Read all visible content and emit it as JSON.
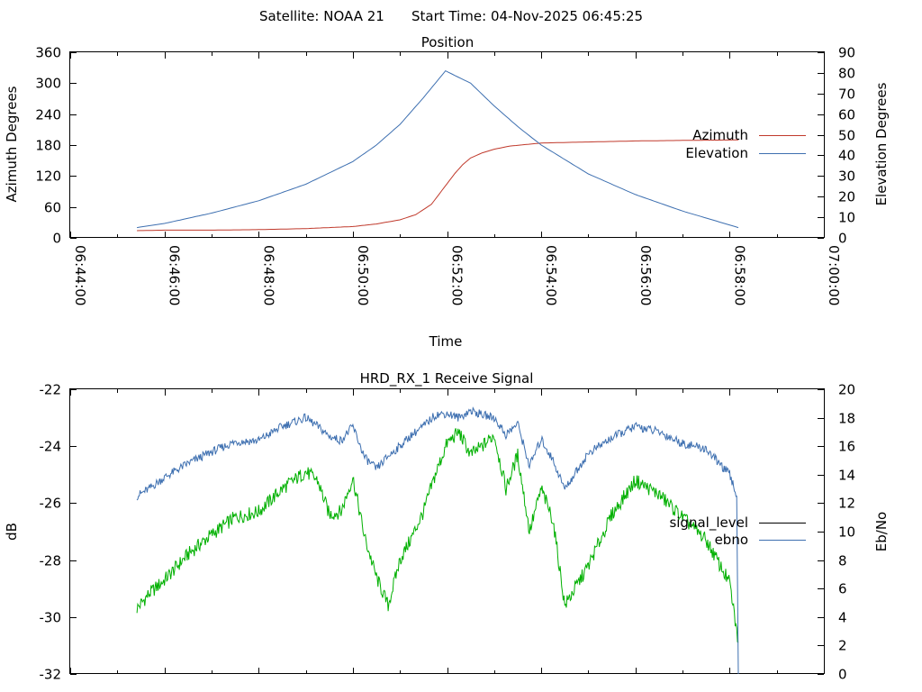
{
  "header": {
    "satellite": "Satellite: NOAA 21",
    "start_time": "Start Time: 04-Nov-2025 06:45:25"
  },
  "chart_data": [
    {
      "type": "line",
      "title": "Position",
      "xlabel": "Time",
      "ylabel": "Azimuth Degrees",
      "y2label": "Elevation Degrees",
      "xlim": [
        "06:44:00",
        "07:00:00"
      ],
      "ylim": [
        0,
        360
      ],
      "y2lim": [
        0,
        90
      ],
      "x_ticks": [
        "06:44:00",
        "06:46:00",
        "06:48:00",
        "06:50:00",
        "06:52:00",
        "06:54:00",
        "06:56:00",
        "06:58:00",
        "07:00:00"
      ],
      "y_ticks": [
        "0",
        "60",
        "120",
        "180",
        "240",
        "300",
        "360"
      ],
      "y2_ticks": [
        "0",
        "10",
        "20",
        "30",
        "40",
        "50",
        "60",
        "70",
        "80",
        "90"
      ],
      "legend_position": "right",
      "grid": false,
      "series": [
        {
          "name": "Azimuth",
          "axis": "y",
          "color": "#c0392b",
          "x": [
            "06:45:25",
            "06:46:00",
            "06:47:00",
            "06:48:00",
            "06:49:00",
            "06:49:30",
            "06:50:00",
            "06:50:30",
            "06:51:00",
            "06:51:20",
            "06:51:40",
            "06:51:50",
            "06:52:00",
            "06:52:10",
            "06:52:20",
            "06:52:30",
            "06:52:45",
            "06:53:00",
            "06:53:20",
            "06:53:40",
            "06:54:00",
            "06:55:00",
            "06:56:00",
            "06:57:00",
            "06:58:11"
          ],
          "values": [
            14,
            15,
            15,
            16,
            18,
            20,
            22,
            27,
            35,
            45,
            65,
            85,
            105,
            125,
            142,
            155,
            165,
            172,
            178,
            181,
            184,
            186,
            188,
            189,
            190
          ]
        },
        {
          "name": "Elevation",
          "axis": "y2",
          "color": "#3d6fb0",
          "x": [
            "06:45:25",
            "06:46:00",
            "06:47:00",
            "06:48:00",
            "06:49:00",
            "06:50:00",
            "06:50:30",
            "06:51:00",
            "06:51:30",
            "06:51:58",
            "06:52:30",
            "06:53:00",
            "06:53:30",
            "06:54:00",
            "06:55:00",
            "06:56:00",
            "06:57:00",
            "06:58:11"
          ],
          "values": [
            5,
            7,
            12,
            18,
            26,
            37,
            45,
            55,
            68,
            81,
            75,
            64,
            54,
            45,
            31,
            21,
            13,
            5
          ]
        }
      ]
    },
    {
      "type": "line",
      "title": "HRD_RX_1 Receive Signal",
      "xlabel": "",
      "ylabel": "dB",
      "y2label": "Eb/No",
      "xlim": [
        "06:44:00",
        "07:00:00"
      ],
      "ylim": [
        -32,
        -22
      ],
      "y2lim": [
        0,
        20
      ],
      "y_ticks": [
        "-32",
        "-30",
        "-28",
        "-26",
        "-24",
        "-22"
      ],
      "y2_ticks": [
        "0",
        "2",
        "4",
        "6",
        "8",
        "10",
        "12",
        "14",
        "16",
        "18",
        "20"
      ],
      "legend_position": "right",
      "grid": false,
      "series": [
        {
          "name": "signal_level",
          "axis": "y",
          "color": "#00b000",
          "x": [
            "06:45:25",
            "06:45:40",
            "06:46:00",
            "06:46:30",
            "06:47:00",
            "06:47:30",
            "06:48:00",
            "06:48:30",
            "06:49:00",
            "06:49:15",
            "06:49:30",
            "06:49:45",
            "06:50:00",
            "06:50:15",
            "06:50:30",
            "06:50:45",
            "06:51:00",
            "06:51:15",
            "06:51:30",
            "06:51:45",
            "06:52:00",
            "06:52:15",
            "06:52:30",
            "06:52:45",
            "06:53:00",
            "06:53:15",
            "06:53:30",
            "06:53:45",
            "06:54:00",
            "06:54:15",
            "06:54:30",
            "06:55:00",
            "06:55:30",
            "06:56:00",
            "06:56:30",
            "06:57:00",
            "06:57:30",
            "06:58:00",
            "06:58:11"
          ],
          "values": [
            -29.7,
            -29.2,
            -28.7,
            -27.8,
            -27.1,
            -26.5,
            -26.3,
            -25.5,
            -24.9,
            -25.2,
            -26.4,
            -26.3,
            -25.1,
            -27.2,
            -28.6,
            -29.6,
            -28.0,
            -27.2,
            -26.3,
            -25.0,
            -23.9,
            -23.5,
            -24.3,
            -24.0,
            -23.6,
            -25.5,
            -24.3,
            -27.0,
            -25.5,
            -26.6,
            -29.6,
            -28.2,
            -26.4,
            -25.2,
            -25.7,
            -26.5,
            -27.3,
            -28.8,
            -30.9
          ]
        },
        {
          "name": "ebno",
          "axis": "y2",
          "color": "#3d6fb0",
          "x": [
            "06:45:25",
            "06:45:40",
            "06:46:00",
            "06:46:30",
            "06:47:00",
            "06:47:30",
            "06:48:00",
            "06:48:30",
            "06:49:00",
            "06:49:15",
            "06:49:30",
            "06:49:45",
            "06:50:00",
            "06:50:15",
            "06:50:30",
            "06:50:45",
            "06:51:00",
            "06:51:15",
            "06:51:30",
            "06:51:45",
            "06:52:00",
            "06:52:15",
            "06:52:30",
            "06:52:45",
            "06:53:00",
            "06:53:15",
            "06:53:30",
            "06:53:45",
            "06:54:00",
            "06:54:15",
            "06:54:30",
            "06:55:00",
            "06:55:30",
            "06:56:00",
            "06:56:30",
            "06:57:00",
            "06:57:30",
            "06:58:00",
            "06:58:09",
            "06:58:11"
          ],
          "values": [
            12.5,
            13.0,
            13.8,
            14.8,
            15.6,
            16.3,
            16.4,
            17.4,
            18.0,
            17.4,
            16.7,
            16.4,
            17.4,
            15.2,
            14.4,
            15.3,
            16.0,
            16.8,
            17.4,
            18.2,
            18.3,
            18.0,
            18.5,
            18.2,
            18.0,
            16.8,
            17.6,
            14.6,
            16.5,
            15.0,
            13.0,
            15.5,
            16.6,
            17.4,
            17.0,
            16.2,
            15.8,
            14.0,
            12.5,
            0
          ]
        }
      ]
    }
  ]
}
